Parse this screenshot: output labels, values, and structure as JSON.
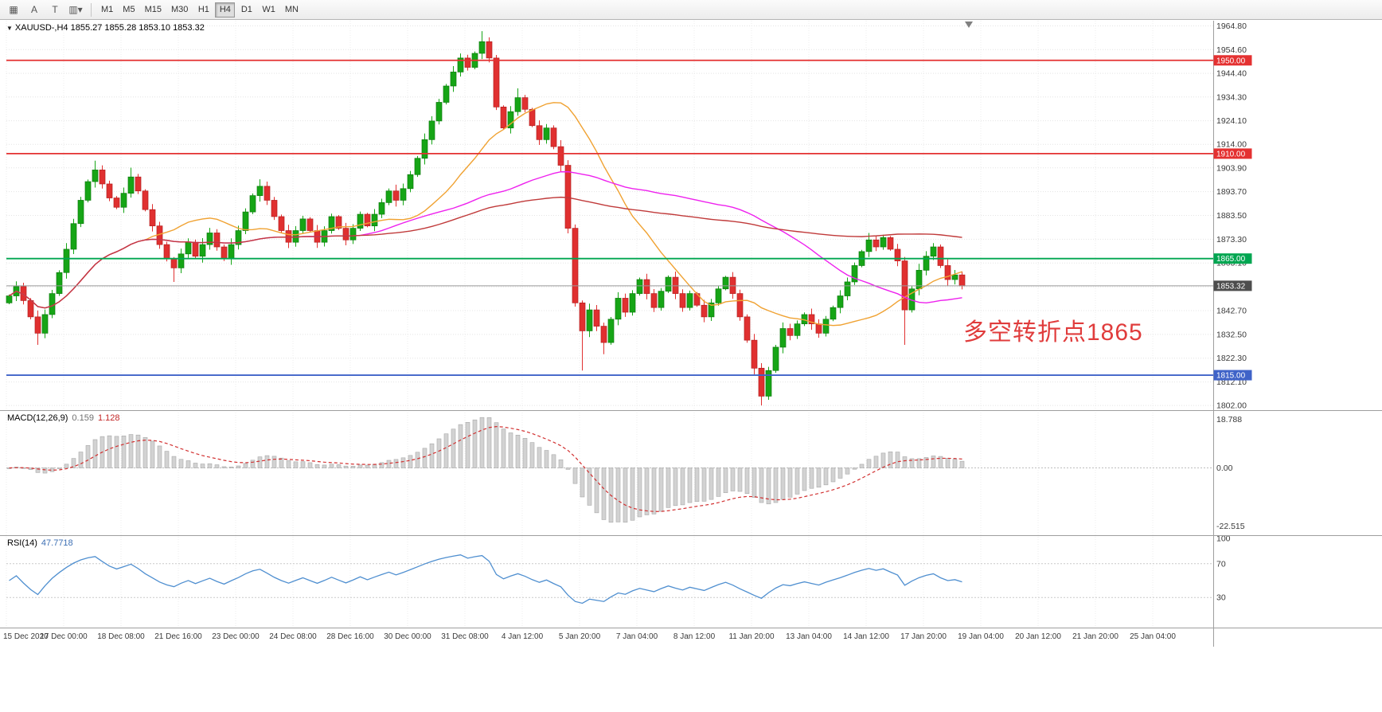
{
  "window": {
    "symbol_period": "XAUUSD-,H4",
    "ohlc_line": "1855.27 1855.28 1853.10 1853.32"
  },
  "toolbar": {
    "icons": [
      {
        "name": "crosshair-grid-icon",
        "glyph": "▦"
      },
      {
        "name": "text-label-icon",
        "glyph": "A"
      },
      {
        "name": "text-tool-icon",
        "glyph": "T"
      },
      {
        "name": "chart-type-dropdown-icon",
        "glyph": "▥▾"
      }
    ],
    "timeframes": [
      {
        "label": "M1",
        "active": false
      },
      {
        "label": "M5",
        "active": false
      },
      {
        "label": "M15",
        "active": false
      },
      {
        "label": "M30",
        "active": false
      },
      {
        "label": "H1",
        "active": false
      },
      {
        "label": "H4",
        "active": true
      },
      {
        "label": "D1",
        "active": false
      },
      {
        "label": "W1",
        "active": false
      },
      {
        "label": "MN",
        "active": false
      }
    ]
  },
  "chart_data": {
    "type": "candlestick",
    "symbol": "XAUUSD-",
    "period": "H4",
    "quote": {
      "open": "1855.27",
      "high": "1855.28",
      "low": "1853.10",
      "close": "1853.32"
    },
    "price_axis": {
      "labels": [
        "1964.80",
        "1954.60",
        "1944.40",
        "1934.30",
        "1924.10",
        "1914.00",
        "1903.90",
        "1893.70",
        "1883.50",
        "1873.30",
        "1863.10",
        "1852.90",
        "1842.70",
        "1832.50",
        "1822.30",
        "1812.10",
        "1802.00"
      ],
      "top": 1967,
      "bottom": 1800
    },
    "time_axis": {
      "labels": [
        "15 Dec 2020",
        "17 Dec 00:00",
        "18 Dec 08:00",
        "21 Dec 16:00",
        "23 Dec 00:00",
        "24 Dec 08:00",
        "28 Dec 16:00",
        "30 Dec 00:00",
        "31 Dec 08:00",
        "4 Jan 12:00",
        "5 Jan 20:00",
        "7 Jan 04:00",
        "8 Jan 12:00",
        "11 Jan 20:00",
        "13 Jan 04:00",
        "14 Jan 12:00",
        "17 Jan 20:00",
        "19 Jan 04:00",
        "20 Jan 12:00",
        "21 Jan 20:00",
        "25 Jan 04:00"
      ]
    },
    "candles": {
      "note": "OHLC approximated from chart pixels; open = previous close",
      "closes": [
        1849,
        1853,
        1847,
        1840,
        1833,
        1841,
        1850,
        1859,
        1869,
        1880,
        1890,
        1898,
        1903,
        1897,
        1891,
        1887,
        1893,
        1900,
        1894,
        1886,
        1879,
        1871,
        1865,
        1861,
        1867,
        1872,
        1866,
        1871,
        1876,
        1870,
        1865,
        1871,
        1877,
        1885,
        1892,
        1896,
        1890,
        1883,
        1877,
        1872,
        1877,
        1882,
        1877,
        1872,
        1877,
        1883,
        1878,
        1873,
        1878,
        1884,
        1879,
        1884,
        1889,
        1894,
        1890,
        1895,
        1901,
        1908,
        1916,
        1924,
        1932,
        1939,
        1945,
        1951,
        1947,
        1953,
        1958,
        1951,
        1930,
        1921,
        1928,
        1934,
        1929,
        1922,
        1916,
        1921,
        1913,
        1905,
        1878,
        1846,
        1834,
        1843,
        1836,
        1829,
        1839,
        1848,
        1842,
        1850,
        1856,
        1850,
        1844,
        1851,
        1857,
        1850,
        1844,
        1850,
        1845,
        1840,
        1846,
        1852,
        1857,
        1850,
        1840,
        1830,
        1818,
        1806,
        1817,
        1827,
        1835,
        1832,
        1837,
        1841,
        1837,
        1833,
        1839,
        1844,
        1849,
        1855,
        1862,
        1868,
        1873,
        1870,
        1874,
        1869,
        1864,
        1843,
        1852,
        1860,
        1866,
        1870,
        1862,
        1856,
        1858,
        1853.32
      ],
      "wick_highs": {
        "12": 1907,
        "17": 1904,
        "35": 1899,
        "66": 1962.5,
        "71": 1938,
        "120": 1876
      },
      "wick_lows": {
        "4": 1828,
        "23": 1855,
        "80": 1817,
        "83": 1824,
        "105": 1802,
        "125": 1828
      }
    },
    "up_color": "#16a516",
    "down_color": "#e03030",
    "moving_averages": [
      {
        "period": 20,
        "color": "#f0a232"
      },
      {
        "period": 50,
        "color": "#ee22ee"
      },
      {
        "period": 120,
        "color": "#c03a3a"
      }
    ],
    "hlines": [
      {
        "price": 1950,
        "label": "1950.00",
        "color": "#e43131"
      },
      {
        "price": 1910,
        "label": "1910.00",
        "color": "#e43131"
      },
      {
        "price": 1865,
        "label": "1865.00",
        "color": "#00a651"
      },
      {
        "price": 1815,
        "label": "1815.00",
        "color": "#3f63c8"
      }
    ],
    "current_price": {
      "value": 1853.32,
      "label": "1853.32",
      "line_color": "#999999",
      "tag_color": "#4d4d4d"
    },
    "macd": {
      "label": "MACD(12,26,9)",
      "value_main": "0.159",
      "value_signal": "1.128",
      "axis_labels": [
        "18.788",
        "0.00",
        "-22.515"
      ],
      "axis_values": [
        18.788,
        0,
        -22.515
      ],
      "ylim": [
        -26,
        22
      ],
      "hist_color": "#d2d2d2",
      "signal_color": "#d23030"
    },
    "rsi": {
      "label": "RSI(14)",
      "value": "47.7718",
      "axis_labels": [
        "100",
        "70",
        "30"
      ],
      "axis_values": [
        100,
        70,
        30
      ],
      "levels": [
        70,
        30
      ],
      "line_color": "#4f8fd0"
    },
    "annotation": {
      "text": "多空转折点1865",
      "color": "#e03c3c"
    },
    "marker": {
      "name": "chart-shift-marker",
      "color": "#808080"
    }
  }
}
